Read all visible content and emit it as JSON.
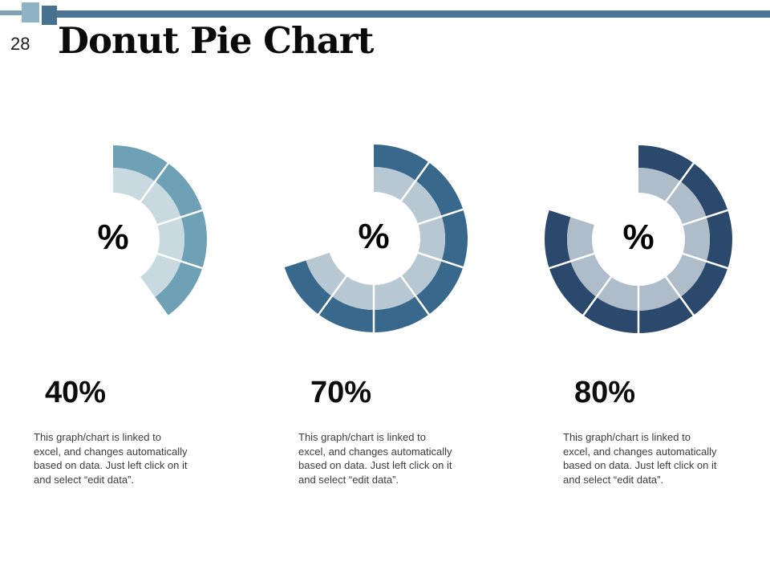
{
  "header": {
    "slide_number": "28",
    "title": "Donut Pie Chart",
    "bar_color": "#4C7495",
    "bar_left_segment_color": "#7FA1B4",
    "square_light_color": "#8FB2C4",
    "square_dark_color": "#46718F"
  },
  "chart_data": [
    {
      "type": "pie",
      "variant": "donut",
      "title": "40%",
      "value_pct": 40,
      "center_label": "%",
      "segments": 4,
      "segment_pct_each": 10,
      "start_angle_deg": 0,
      "direction": "clockwise",
      "legend": "none",
      "ring_colors": {
        "outer": "#6EA0B6",
        "inner": "#C8D9E0"
      },
      "note_lines": [
        "This graph/chart is linked to",
        "excel, and changes automatically",
        "based on data. Just left click on it",
        "and select “edit data”."
      ]
    },
    {
      "type": "pie",
      "variant": "donut",
      "title": "70%",
      "value_pct": 70,
      "center_label": "%",
      "segments": 7,
      "segment_pct_each": 10,
      "start_angle_deg": 0,
      "direction": "clockwise",
      "legend": "none",
      "ring_colors": {
        "outer": "#38688C",
        "inner": "#B8C8D3"
      },
      "note_lines": [
        "This graph/chart is linked to",
        "excel, and changes automatically",
        "based on data. Just left click on it",
        "and select “edit data”."
      ]
    },
    {
      "type": "pie",
      "variant": "donut",
      "title": "80%",
      "value_pct": 80,
      "center_label": "%",
      "segments": 8,
      "segment_pct_each": 10,
      "start_angle_deg": 0,
      "direction": "clockwise",
      "legend": "none",
      "ring_colors": {
        "outer": "#2B496C",
        "inner": "#AFBCC9"
      },
      "note_lines": [
        "This graph/chart is linked to",
        "excel, and changes automatically",
        "based on data. Just left click on it",
        "and select “edit data”."
      ]
    }
  ]
}
